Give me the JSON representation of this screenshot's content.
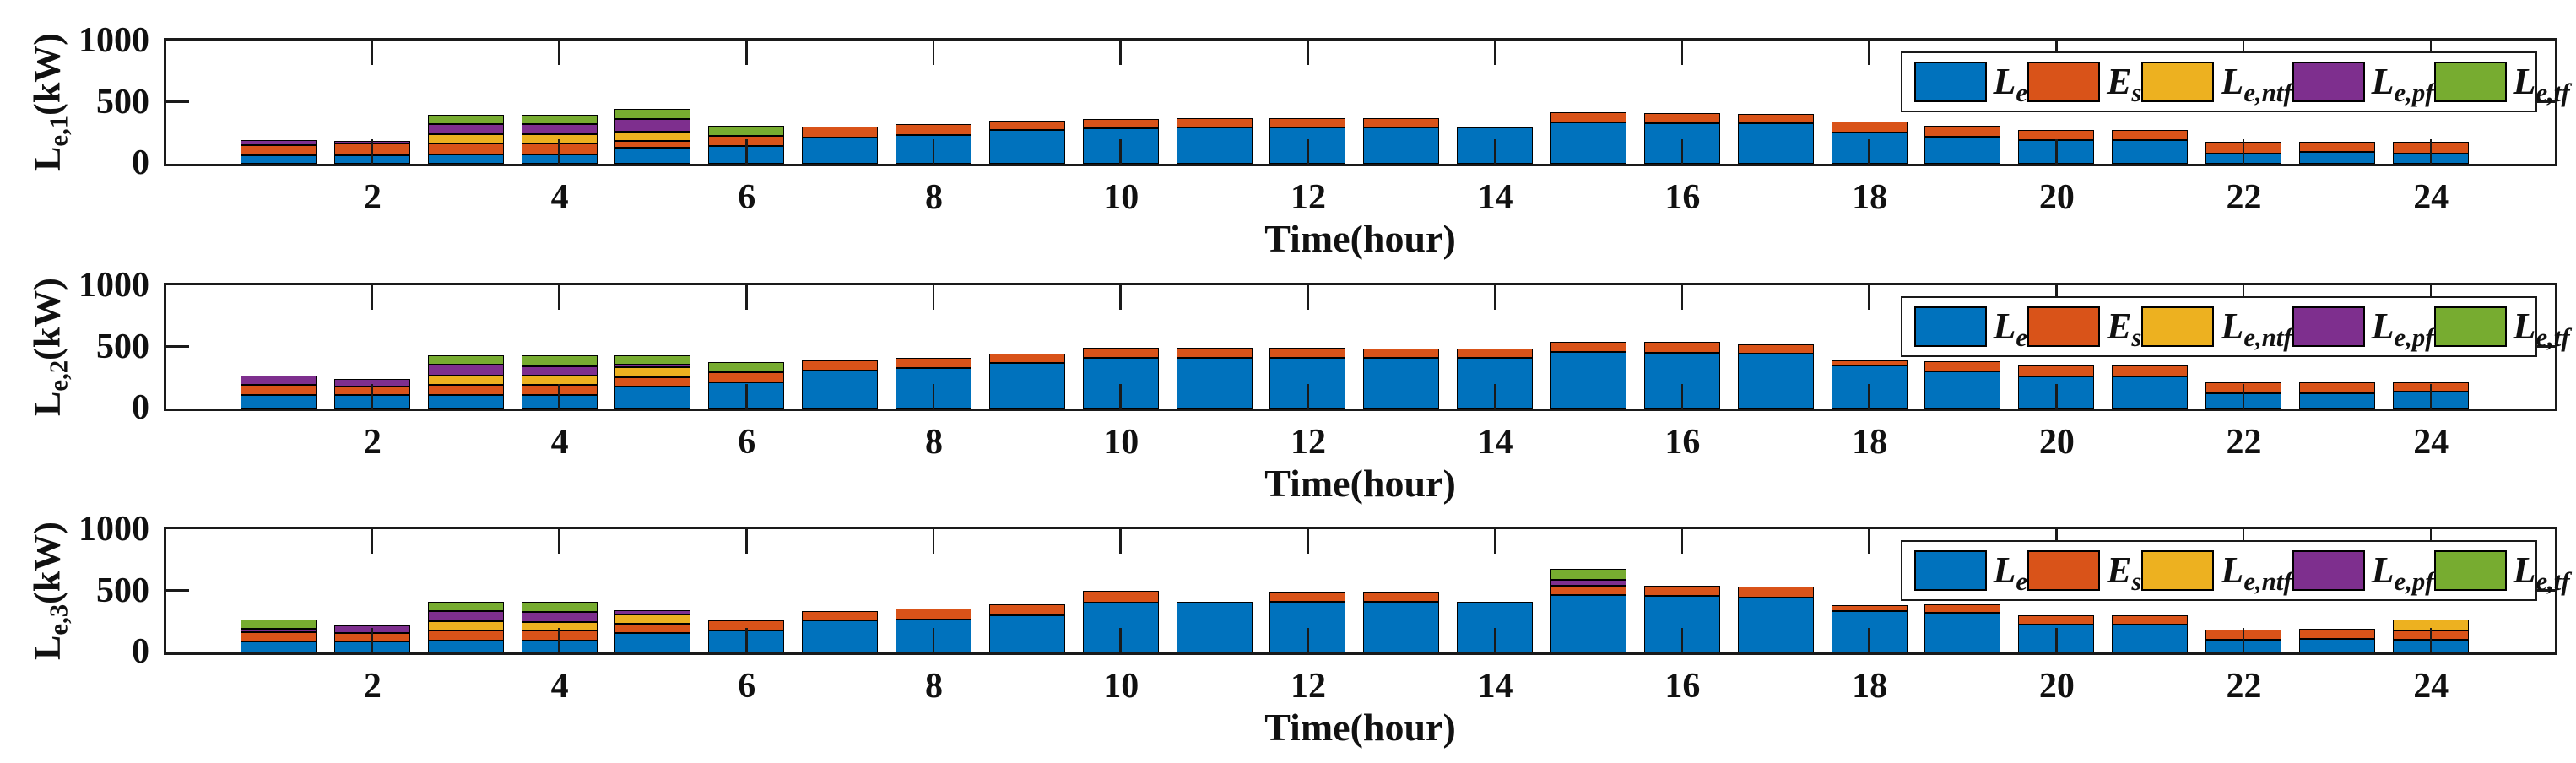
{
  "figure": {
    "background": "#ffffff",
    "axis_color": "#1a1a1a",
    "xlabel": "Time(hour)",
    "xtick_labels": [
      "2",
      "4",
      "6",
      "8",
      "10",
      "12",
      "14",
      "16",
      "18",
      "20",
      "22",
      "24"
    ],
    "ytick_labels": [
      "0",
      "500",
      "1000"
    ],
    "legend_items": [
      {
        "main": "L",
        "sub": "e",
        "color": "#0072BD"
      },
      {
        "main": "E",
        "sub": "s",
        "color": "#D95319"
      },
      {
        "main": "L",
        "sub": "e,ntf",
        "color": "#EDB120"
      },
      {
        "main": "L",
        "sub": "e,pf",
        "color": "#7E2F8E"
      },
      {
        "main": "L",
        "sub": "e,tf",
        "color": "#77AC30"
      }
    ]
  },
  "chart_data": [
    {
      "type": "bar",
      "stacked": true,
      "ylabel": {
        "main": "L",
        "sub": "e,1",
        "unit": "(kW)"
      },
      "xlabel": "Time(hour)",
      "ylim": [
        0,
        1000
      ],
      "yticks": [
        0,
        500,
        1000
      ],
      "xticks": [
        2,
        4,
        6,
        8,
        10,
        12,
        14,
        16,
        18,
        20,
        22,
        24
      ],
      "categories": [
        1,
        2,
        3,
        4,
        5,
        6,
        7,
        8,
        9,
        10,
        11,
        12,
        13,
        14,
        15,
        16,
        17,
        18,
        19,
        20,
        21,
        22,
        23,
        24
      ],
      "grid": false,
      "legend_position": "top-right",
      "series": [
        {
          "name": "L_e",
          "color": "#0072BD",
          "values": [
            65,
            65,
            70,
            70,
            125,
            140,
            210,
            230,
            270,
            285,
            290,
            290,
            290,
            295,
            335,
            330,
            325,
            250,
            220,
            190,
            190,
            80,
            90,
            80
          ]
        },
        {
          "name": "E_s",
          "color": "#D95319",
          "values": [
            85,
            95,
            90,
            90,
            60,
            85,
            90,
            90,
            75,
            80,
            80,
            80,
            80,
            0,
            80,
            80,
            80,
            90,
            85,
            80,
            85,
            95,
            85,
            95
          ]
        },
        {
          "name": "L_e,ntf",
          "color": "#EDB120",
          "values": [
            0,
            0,
            80,
            80,
            75,
            0,
            0,
            0,
            0,
            0,
            0,
            0,
            0,
            0,
            0,
            0,
            0,
            0,
            0,
            0,
            0,
            0,
            0,
            0
          ]
        },
        {
          "name": "L_e,pf",
          "color": "#7E2F8E",
          "values": [
            40,
            20,
            80,
            80,
            105,
            0,
            0,
            0,
            0,
            0,
            0,
            0,
            0,
            0,
            0,
            0,
            0,
            0,
            0,
            0,
            0,
            0,
            0,
            0
          ]
        },
        {
          "name": "L_e,tf",
          "color": "#77AC30",
          "values": [
            0,
            0,
            75,
            75,
            80,
            80,
            0,
            0,
            0,
            0,
            0,
            0,
            0,
            0,
            0,
            0,
            0,
            0,
            0,
            0,
            0,
            0,
            0,
            0
          ]
        }
      ]
    },
    {
      "type": "bar",
      "stacked": true,
      "ylabel": {
        "main": "L",
        "sub": "e,2",
        "unit": "(kW)"
      },
      "xlabel": "Time(hour)",
      "ylim": [
        0,
        1000
      ],
      "yticks": [
        0,
        500,
        1000
      ],
      "xticks": [
        2,
        4,
        6,
        8,
        10,
        12,
        14,
        16,
        18,
        20,
        22,
        24
      ],
      "categories": [
        1,
        2,
        3,
        4,
        5,
        6,
        7,
        8,
        9,
        10,
        11,
        12,
        13,
        14,
        15,
        16,
        17,
        18,
        19,
        20,
        21,
        22,
        23,
        24
      ],
      "grid": false,
      "legend_position": "top-right",
      "series": [
        {
          "name": "L_e",
          "color": "#0072BD",
          "values": [
            110,
            110,
            110,
            110,
            175,
            215,
            310,
            330,
            370,
            410,
            415,
            415,
            415,
            415,
            460,
            455,
            450,
            350,
            305,
            260,
            260,
            125,
            125,
            135
          ]
        },
        {
          "name": "E_s",
          "color": "#D95319",
          "values": [
            80,
            65,
            80,
            80,
            80,
            80,
            80,
            85,
            80,
            85,
            80,
            80,
            75,
            75,
            85,
            90,
            75,
            40,
            80,
            90,
            90,
            90,
            90,
            80
          ]
        },
        {
          "name": "L_e,ntf",
          "color": "#EDB120",
          "values": [
            0,
            0,
            75,
            75,
            80,
            0,
            0,
            0,
            0,
            0,
            0,
            0,
            0,
            0,
            0,
            0,
            0,
            0,
            0,
            0,
            0,
            0,
            0,
            0
          ]
        },
        {
          "name": "L_e,pf",
          "color": "#7E2F8E",
          "values": [
            75,
            65,
            90,
            80,
            25,
            0,
            0,
            0,
            0,
            0,
            0,
            0,
            0,
            0,
            0,
            0,
            0,
            0,
            0,
            0,
            0,
            0,
            0,
            0
          ]
        },
        {
          "name": "L_e,tf",
          "color": "#77AC30",
          "values": [
            0,
            0,
            75,
            85,
            75,
            80,
            0,
            0,
            0,
            0,
            0,
            0,
            0,
            0,
            0,
            0,
            0,
            0,
            0,
            0,
            0,
            0,
            0,
            0
          ]
        }
      ]
    },
    {
      "type": "bar",
      "stacked": true,
      "ylabel": {
        "main": "L",
        "sub": "e,3",
        "unit": "(kW)"
      },
      "xlabel": "Time(hour)",
      "ylim": [
        0,
        1000
      ],
      "yticks": [
        0,
        500,
        1000
      ],
      "xticks": [
        2,
        4,
        6,
        8,
        10,
        12,
        14,
        16,
        18,
        20,
        22,
        24
      ],
      "categories": [
        1,
        2,
        3,
        4,
        5,
        6,
        7,
        8,
        9,
        10,
        11,
        12,
        13,
        14,
        15,
        16,
        17,
        18,
        19,
        20,
        21,
        22,
        23,
        24
      ],
      "grid": false,
      "legend_position": "top-right",
      "series": [
        {
          "name": "L_e",
          "color": "#0072BD",
          "values": [
            85,
            85,
            95,
            95,
            155,
            175,
            260,
            270,
            305,
            405,
            415,
            410,
            415,
            415,
            470,
            460,
            450,
            340,
            320,
            225,
            225,
            105,
            110,
            105
          ]
        },
        {
          "name": "E_s",
          "color": "#D95319",
          "values": [
            80,
            75,
            80,
            80,
            75,
            85,
            80,
            90,
            90,
            95,
            0,
            85,
            80,
            0,
            75,
            85,
            85,
            45,
            75,
            80,
            80,
            80,
            80,
            75
          ]
        },
        {
          "name": "L_e,ntf",
          "color": "#EDB120",
          "values": [
            0,
            0,
            80,
            75,
            80,
            0,
            0,
            0,
            0,
            0,
            0,
            0,
            0,
            0,
            0,
            0,
            0,
            0,
            0,
            0,
            0,
            0,
            0,
            90
          ]
        },
        {
          "name": "L_e,pf",
          "color": "#7E2F8E",
          "values": [
            25,
            60,
            80,
            80,
            35,
            0,
            0,
            0,
            0,
            0,
            0,
            0,
            0,
            0,
            50,
            0,
            0,
            0,
            0,
            0,
            0,
            0,
            0,
            0
          ]
        },
        {
          "name": "L_e,tf",
          "color": "#77AC30",
          "values": [
            75,
            0,
            80,
            85,
            0,
            0,
            0,
            0,
            0,
            0,
            0,
            0,
            0,
            0,
            85,
            0,
            0,
            0,
            0,
            0,
            0,
            0,
            0,
            0
          ]
        }
      ]
    }
  ]
}
